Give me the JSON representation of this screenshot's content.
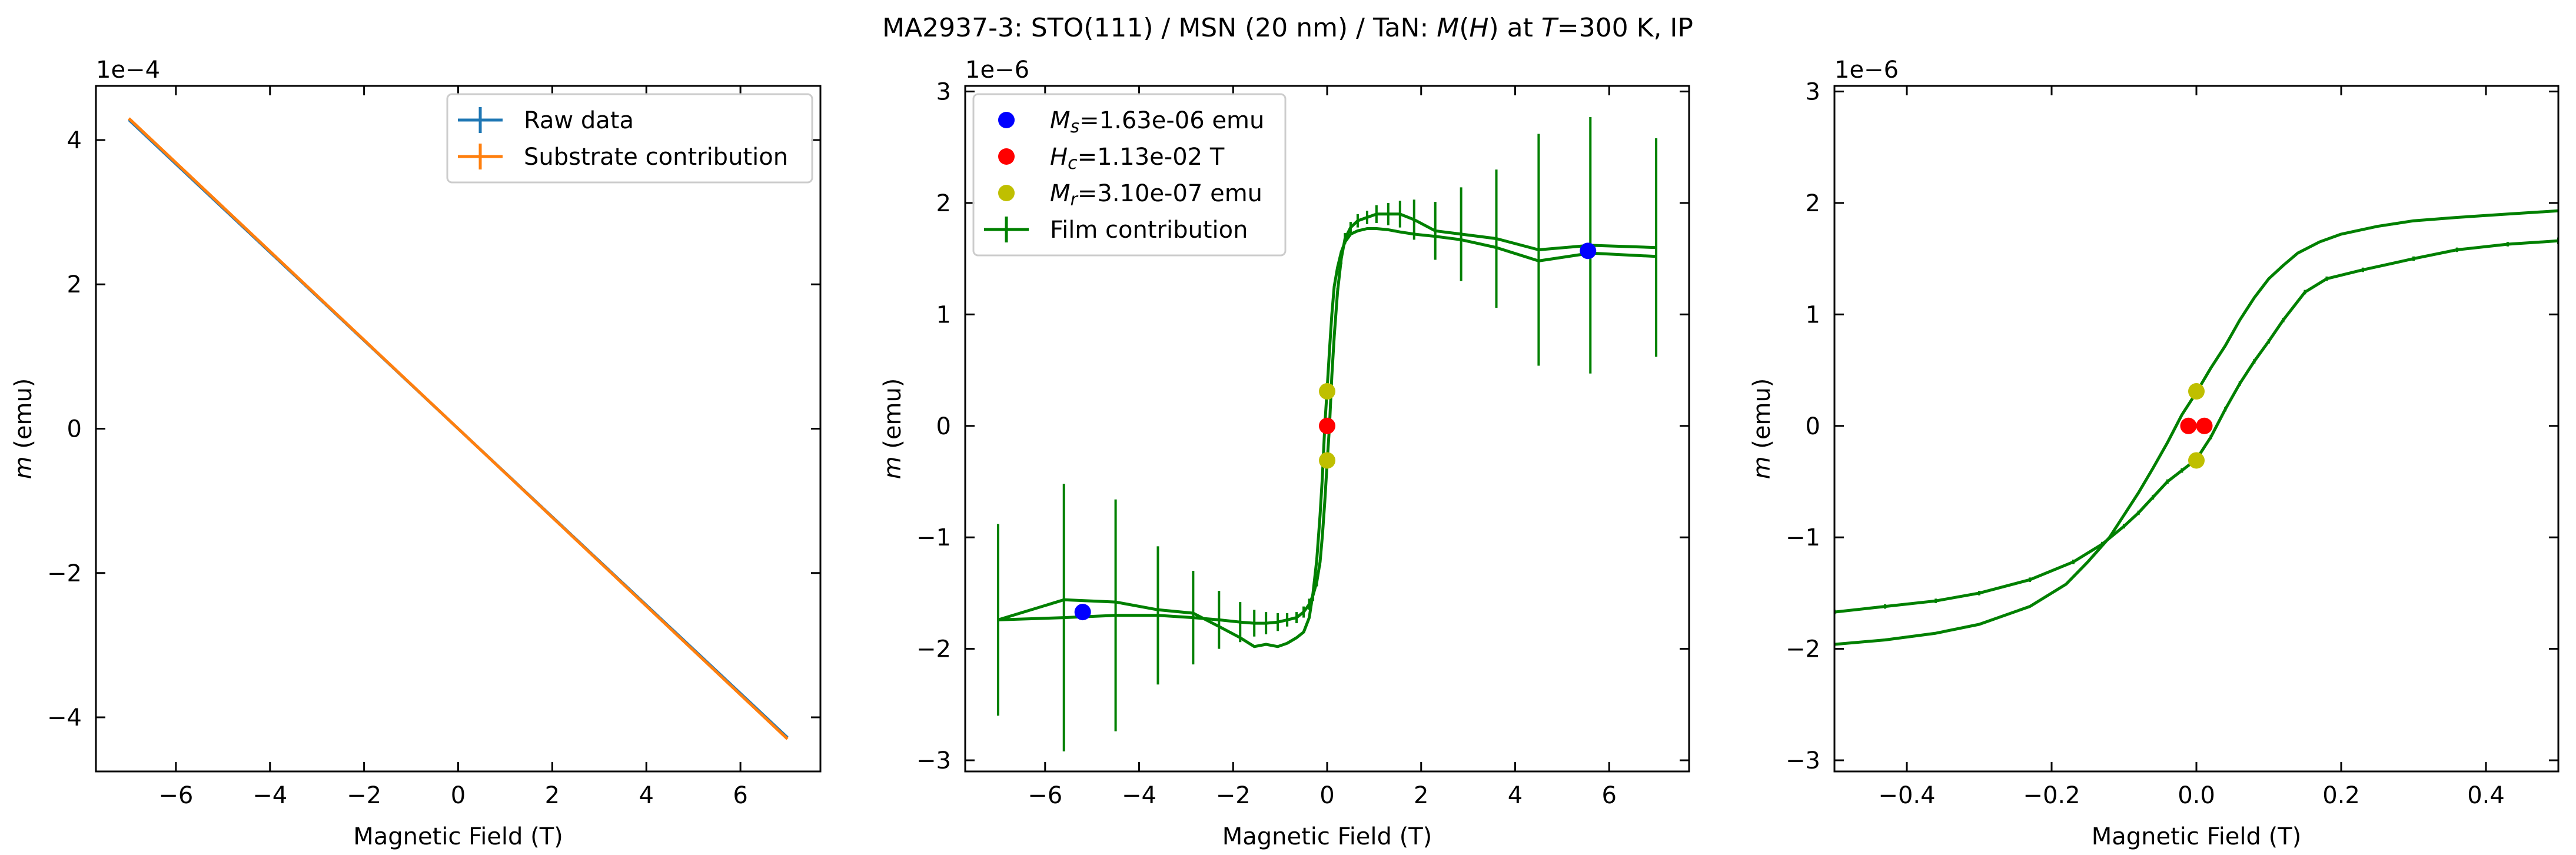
{
  "figure": {
    "title_parts": [
      {
        "text": "MA2937-3: STO(111)  / MSN (20 nm) / TaN: ",
        "italic": false
      },
      {
        "text": "M",
        "italic": true
      },
      {
        "text": "(",
        "italic": false
      },
      {
        "text": "H",
        "italic": true
      },
      {
        "text": ") at ",
        "italic": false
      },
      {
        "text": "T",
        "italic": true
      },
      {
        "text": "=300 K, IP",
        "italic": false
      }
    ]
  },
  "colors": {
    "raw": "#1f77b4",
    "substrate": "#ff7f0e",
    "film": "#008000",
    "ms": "#0000ff",
    "hc": "#ff0000",
    "mr": "#bfbf00",
    "axis": "#000000"
  },
  "chart_data": [
    {
      "type": "line",
      "xlabel": "Magnetic Field (T)",
      "ylabel_italic": "m",
      "ylabel_rest": " (emu)",
      "offset_label": "1e−4",
      "xlim": [
        -7.7,
        7.7
      ],
      "ylim": [
        -4.75,
        4.75
      ],
      "xticks": [
        -6,
        -4,
        -2,
        0,
        2,
        4,
        6
      ],
      "xtick_labels": [
        "−6",
        "−4",
        "−2",
        "0",
        "2",
        "4",
        "6"
      ],
      "yticks": [
        -4,
        -2,
        0,
        2,
        4
      ],
      "ytick_labels": [
        "−4",
        "−2",
        "0",
        "2",
        "4"
      ],
      "legend_position": "top-right",
      "legend": [
        {
          "label": "Raw data",
          "color_key": "raw"
        },
        {
          "label": "Substrate contribution",
          "color_key": "substrate"
        }
      ],
      "series": [
        {
          "name": "Raw data",
          "color_key": "raw",
          "errorbars": true,
          "x": [
            -7,
            7
          ],
          "y": [
            4.28,
            -4.28
          ]
        },
        {
          "name": "Substrate contribution",
          "color_key": "substrate",
          "errorbars": true,
          "x": [
            -7,
            7
          ],
          "y": [
            4.3,
            -4.3
          ]
        }
      ],
      "markers": []
    },
    {
      "type": "line",
      "xlabel": "Magnetic Field (T)",
      "ylabel_italic": "m",
      "ylabel_rest": " (emu)",
      "offset_label": "1e−6",
      "xlim": [
        -7.7,
        7.7
      ],
      "ylim": [
        -3.1,
        3.05
      ],
      "xticks": [
        -6,
        -4,
        -2,
        0,
        2,
        4,
        6
      ],
      "xtick_labels": [
        "−6",
        "−4",
        "−2",
        "0",
        "2",
        "4",
        "6"
      ],
      "yticks": [
        -3,
        -2,
        -1,
        0,
        1,
        2,
        3
      ],
      "ytick_labels": [
        "−3",
        "−2",
        "−1",
        "0",
        "1",
        "2",
        "3"
      ],
      "legend_position": "top-left",
      "legend": [
        {
          "sym": "M",
          "sub": "s",
          "value": "=1.63e-06 emu",
          "color_key": "ms",
          "kind": "dot"
        },
        {
          "sym": "H",
          "sub": "c",
          "value": "=1.13e-02 T",
          "color_key": "hc",
          "kind": "dot"
        },
        {
          "sym": "M",
          "sub": "r",
          "value": "=3.10e-07 emu",
          "color_key": "mr",
          "kind": "dot"
        },
        {
          "text": "Film contribution",
          "color_key": "film",
          "kind": "errline"
        }
      ],
      "series": [
        {
          "name": "Film contribution",
          "color_key": "film",
          "errorbars": true,
          "x": [
            -7.0,
            -5.6,
            -4.5,
            -3.6,
            -2.85,
            -2.3,
            -1.85,
            -1.55,
            -1.3,
            -1.05,
            -0.85,
            -0.65,
            -0.5,
            -0.38,
            -0.3,
            -0.22,
            -0.15,
            -0.1,
            -0.05,
            0,
            0.05,
            0.1,
            0.15,
            0.22,
            0.3,
            0.38,
            0.5,
            0.65,
            0.85,
            1.05,
            1.3,
            1.55,
            1.85,
            2.3,
            2.85,
            3.6,
            4.5,
            5.6,
            7.0
          ],
          "y": [
            -1.74,
            -1.72,
            -1.7,
            -1.7,
            -1.72,
            -1.74,
            -1.76,
            -1.77,
            -1.77,
            -1.76,
            -1.74,
            -1.72,
            -1.67,
            -1.6,
            -1.52,
            -1.4,
            -1.22,
            -0.98,
            -0.68,
            -0.33,
            0.0,
            0.45,
            0.8,
            1.2,
            1.5,
            1.68,
            1.78,
            1.84,
            1.87,
            1.9,
            1.9,
            1.9,
            1.85,
            1.75,
            1.72,
            1.68,
            1.58,
            1.62,
            1.6
          ],
          "err": [
            0.86,
            1.2,
            1.04,
            0.62,
            0.42,
            0.26,
            0.18,
            0.12,
            0.1,
            0.08,
            0.06,
            0.05,
            0.05,
            0.05,
            0.05,
            0.04,
            0.04,
            0.03,
            0.03,
            0.03,
            0.03,
            0.03,
            0.04,
            0.04,
            0.05,
            0.05,
            0.05,
            0.06,
            0.06,
            0.08,
            0.1,
            0.12,
            0.18,
            0.26,
            0.42,
            0.62,
            1.04,
            1.15,
            0.98
          ]
        },
        {
          "name": "Film contribution (return)",
          "color_key": "film",
          "errorbars": false,
          "x": [
            7.0,
            5.6,
            4.5,
            3.6,
            2.85,
            2.3,
            1.85,
            1.55,
            1.3,
            1.05,
            0.85,
            0.65,
            0.5,
            0.38,
            0.3,
            0.22,
            0.15,
            0.1,
            0.05,
            0,
            -0.05,
            -0.1,
            -0.15,
            -0.22,
            -0.3,
            -0.38,
            -0.5,
            -0.65,
            -0.85,
            -1.05,
            -1.3,
            -1.55,
            -1.85,
            -2.3,
            -2.85,
            -3.6,
            -4.5,
            -5.6,
            -7.0
          ],
          "y": [
            1.52,
            1.55,
            1.48,
            1.6,
            1.67,
            1.7,
            1.72,
            1.74,
            1.76,
            1.77,
            1.77,
            1.75,
            1.72,
            1.65,
            1.56,
            1.42,
            1.25,
            1.0,
            0.68,
            0.33,
            0.0,
            -0.45,
            -0.8,
            -1.2,
            -1.5,
            -1.72,
            -1.85,
            -1.9,
            -1.95,
            -1.98,
            -1.96,
            -1.98,
            -1.9,
            -1.8,
            -1.68,
            -1.65,
            -1.58,
            -1.56,
            -1.74
          ]
        }
      ],
      "markers": [
        {
          "x": -5.2,
          "y": -1.67,
          "color_key": "ms"
        },
        {
          "x": 5.55,
          "y": 1.57,
          "color_key": "ms"
        },
        {
          "x": 0.0,
          "y": 0.0,
          "color_key": "hc"
        },
        {
          "x": 0.0,
          "y": 0.31,
          "color_key": "mr"
        },
        {
          "x": 0.0,
          "y": -0.31,
          "color_key": "mr"
        }
      ]
    },
    {
      "type": "line",
      "xlabel": "Magnetic Field (T)",
      "ylabel_italic": "m",
      "ylabel_rest": " (emu)",
      "offset_label": "1e−6",
      "xlim": [
        -0.5,
        0.5
      ],
      "ylim": [
        -3.1,
        3.05
      ],
      "xticks": [
        -0.4,
        -0.2,
        0,
        0.2,
        0.4
      ],
      "xtick_labels": [
        "−0.4",
        "−0.2",
        "0.0",
        "0.2",
        "0.4"
      ],
      "yticks": [
        -3,
        -2,
        -1,
        0,
        1,
        2,
        3
      ],
      "ytick_labels": [
        "−3",
        "−2",
        "−1",
        "0",
        "1",
        "2",
        "3"
      ],
      "legend": [],
      "series": [
        {
          "name": "Film contribution",
          "color_key": "film",
          "errorbars": true,
          "x": [
            -0.5,
            -0.43,
            -0.36,
            -0.3,
            -0.23,
            -0.17,
            -0.13,
            -0.1,
            -0.08,
            -0.06,
            -0.04,
            -0.02,
            0.0,
            0.02,
            0.04,
            0.06,
            0.08,
            0.1,
            0.12,
            0.15,
            0.18,
            0.23,
            0.3,
            0.36,
            0.43,
            0.5
          ],
          "y": [
            -1.67,
            -1.62,
            -1.57,
            -1.5,
            -1.38,
            -1.22,
            -1.06,
            -0.9,
            -0.78,
            -0.64,
            -0.5,
            -0.4,
            -0.3,
            -0.1,
            0.15,
            0.38,
            0.58,
            0.76,
            0.95,
            1.2,
            1.32,
            1.4,
            1.5,
            1.58,
            1.63,
            1.66
          ],
          "err": [
            0.02,
            0.02,
            0.02,
            0.02,
            0.02,
            0.02,
            0.02,
            0.02,
            0.02,
            0.02,
            0.02,
            0.02,
            0.02,
            0.02,
            0.02,
            0.02,
            0.02,
            0.02,
            0.02,
            0.02,
            0.02,
            0.02,
            0.02,
            0.02,
            0.02,
            0.03
          ]
        },
        {
          "name": "Film contribution (return)",
          "color_key": "film",
          "errorbars": true,
          "x": [
            0.5,
            0.43,
            0.36,
            0.3,
            0.25,
            0.2,
            0.17,
            0.14,
            0.12,
            0.1,
            0.08,
            0.06,
            0.04,
            0.02,
            0.0,
            -0.02,
            -0.04,
            -0.06,
            -0.08,
            -0.1,
            -0.12,
            -0.15,
            -0.18,
            -0.23,
            -0.3,
            -0.36,
            -0.43,
            -0.5
          ],
          "y": [
            1.93,
            1.9,
            1.87,
            1.84,
            1.79,
            1.72,
            1.65,
            1.55,
            1.44,
            1.32,
            1.15,
            0.95,
            0.72,
            0.52,
            0.3,
            0.1,
            -0.15,
            -0.38,
            -0.6,
            -0.8,
            -1.0,
            -1.22,
            -1.42,
            -1.62,
            -1.78,
            -1.86,
            -1.92,
            -1.96
          ]
        }
      ],
      "markers": [
        {
          "x": -0.011,
          "y": 0.0,
          "color_key": "hc"
        },
        {
          "x": 0.011,
          "y": 0.0,
          "color_key": "hc"
        },
        {
          "x": 0.0,
          "y": 0.31,
          "color_key": "mr"
        },
        {
          "x": 0.0,
          "y": -0.31,
          "color_key": "mr"
        }
      ]
    }
  ]
}
